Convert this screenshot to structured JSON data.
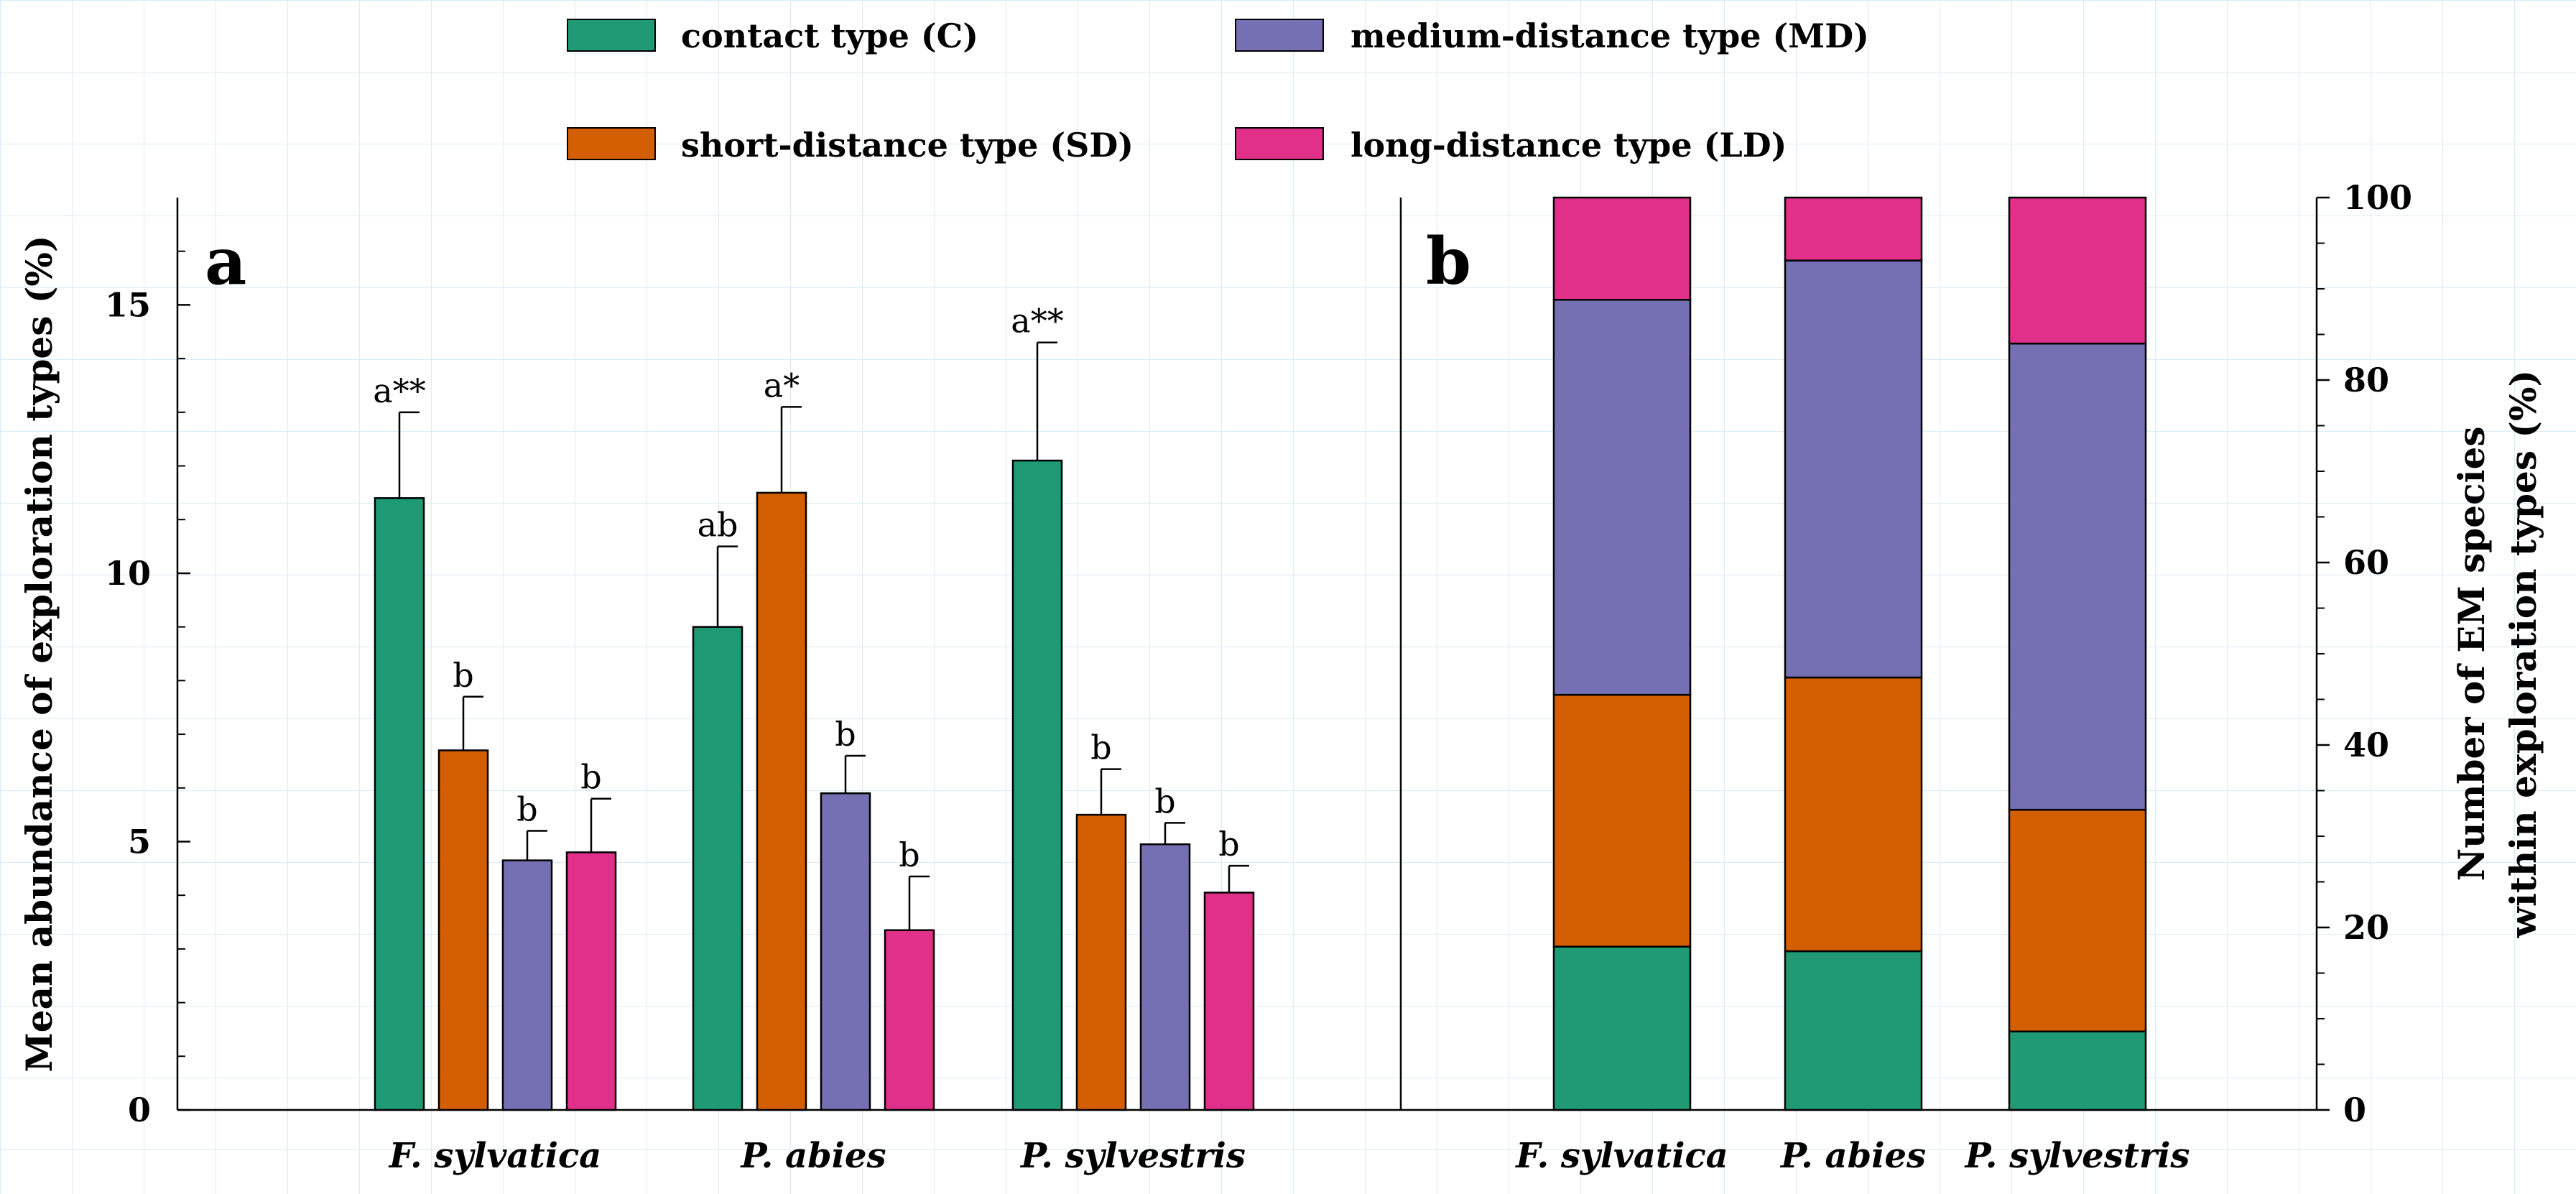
{
  "colors": {
    "C": "#1f9a74",
    "SD": "#d35f02",
    "MD": "#7570b3",
    "LD": "#e0308a",
    "grid": "#d6eaf8"
  },
  "legend": [
    {
      "key": "C",
      "label": "contact type (C)"
    },
    {
      "key": "MD",
      "label": "medium-distance type (MD)"
    },
    {
      "key": "SD",
      "label": "short-distance type (SD)"
    },
    {
      "key": "LD",
      "label": "long-distance type (LD)"
    }
  ],
  "chart_data": [
    {
      "type": "bar",
      "panel_label": "a",
      "ylabel": "Mean abundance of exploration types (%)",
      "ylim": [
        0,
        17
      ],
      "yticks": [
        "0",
        "5",
        "10",
        "15"
      ],
      "categories": [
        "F. sylvatica",
        "P. abies",
        "P. sylvestris"
      ],
      "series": [
        {
          "key": "C",
          "name": "contact type (C)",
          "values": [
            11.4,
            9.0,
            12.1
          ],
          "errors": [
            1.6,
            1.5,
            2.2
          ],
          "labels": [
            "a**",
            "ab",
            "a**"
          ]
        },
        {
          "key": "SD",
          "name": "short-distance type (SD)",
          "values": [
            6.7,
            11.5,
            5.5
          ],
          "errors": [
            1.0,
            1.6,
            0.85
          ],
          "labels": [
            "b",
            "a*",
            "b"
          ]
        },
        {
          "key": "MD",
          "name": "medium-distance type (MD)",
          "values": [
            4.65,
            5.9,
            4.95
          ],
          "errors": [
            0.55,
            0.7,
            0.4
          ],
          "labels": [
            "b",
            "b",
            "b"
          ]
        },
        {
          "key": "LD",
          "name": "long-distance type (LD)",
          "values": [
            4.8,
            3.35,
            4.05
          ],
          "errors": [
            1.0,
            1.0,
            0.5
          ],
          "labels": [
            "b",
            "b",
            "b"
          ]
        }
      ]
    },
    {
      "type": "stacked-bar",
      "panel_label": "b",
      "ylabel_lines": [
        "Number of EM species",
        "within exploration types (%)"
      ],
      "ylim": [
        0,
        100
      ],
      "yticks": [
        "0",
        "20",
        "40",
        "60",
        "80",
        "100"
      ],
      "categories": [
        "F. sylvatica",
        "P. abies",
        "P. sylvestris"
      ],
      "series": [
        {
          "key": "C",
          "name": "contact type (C)",
          "values": [
            17.9,
            17.4,
            8.6
          ]
        },
        {
          "key": "SD",
          "name": "short-distance type (SD)",
          "values": [
            27.6,
            30.0,
            24.3
          ]
        },
        {
          "key": "MD",
          "name": "medium-distance type (MD)",
          "values": [
            43.3,
            45.7,
            51.1
          ]
        },
        {
          "key": "LD",
          "name": "long-distance type (LD)",
          "values": [
            11.2,
            6.9,
            16.0
          ]
        }
      ]
    }
  ]
}
